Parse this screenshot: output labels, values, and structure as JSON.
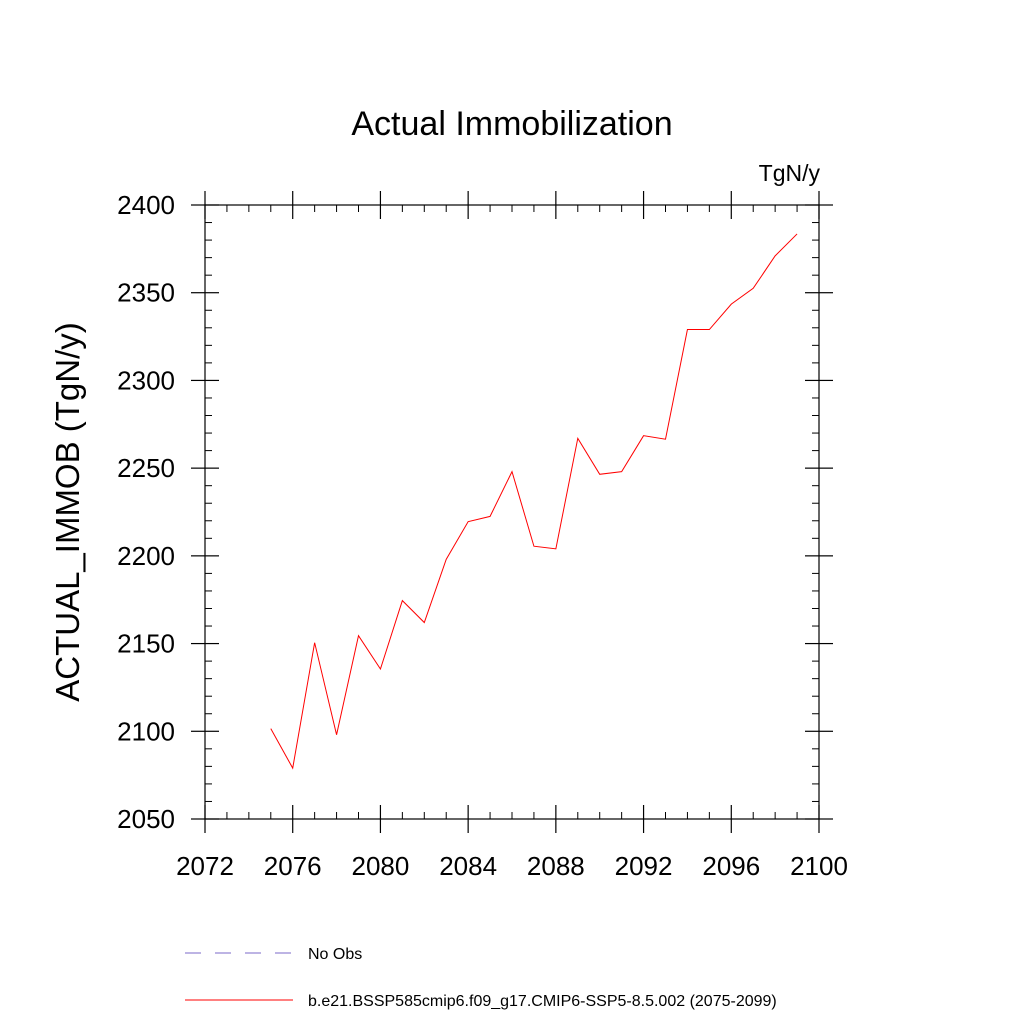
{
  "chart_data": {
    "type": "line",
    "title": "Actual Immobilization",
    "units_label": "TgN/y",
    "xlabel": "",
    "ylabel": "ACTUAL_IMMOB  (TgN/y)",
    "xlim": [
      2072,
      2100
    ],
    "ylim": [
      2050,
      2400
    ],
    "x_ticks": [
      2072,
      2076,
      2080,
      2084,
      2088,
      2092,
      2096,
      2100
    ],
    "y_ticks": [
      2050,
      2100,
      2150,
      2200,
      2250,
      2300,
      2350,
      2400
    ],
    "x_minor_step": 1,
    "y_minor_step": 10,
    "grid": false,
    "legend_position": "bottom",
    "series": [
      {
        "name": "b.e21.BSSP585cmip6.f09_g17.CMIP6-SSP5-8.5.002 (2075-2099)",
        "color": "#ff0000",
        "style": "solid",
        "x": [
          2075,
          2076,
          2077,
          2078,
          2079,
          2080,
          2081,
          2082,
          2083,
          2084,
          2085,
          2086,
          2087,
          2088,
          2089,
          2090,
          2091,
          2092,
          2093,
          2094,
          2095,
          2096,
          2097,
          2098,
          2099
        ],
        "values": [
          2101.5,
          2079,
          2150.5,
          2098,
          2154.5,
          2135.5,
          2174.5,
          2162,
          2198,
          2219.5,
          2222.5,
          2248,
          2205.5,
          2204,
          2267,
          2246.5,
          2248,
          2268.5,
          2266.5,
          2329,
          2329,
          2343.5,
          2352.5,
          2371,
          2383.5
        ]
      }
    ],
    "legend": [
      {
        "label": "No Obs",
        "color": "#7b68c8",
        "style": "dashed"
      },
      {
        "label": "b.e21.BSSP585cmip6.f09_g17.CMIP6-SSP5-8.5.002 (2075-2099)",
        "color": "#ff0000",
        "style": "solid"
      }
    ]
  }
}
